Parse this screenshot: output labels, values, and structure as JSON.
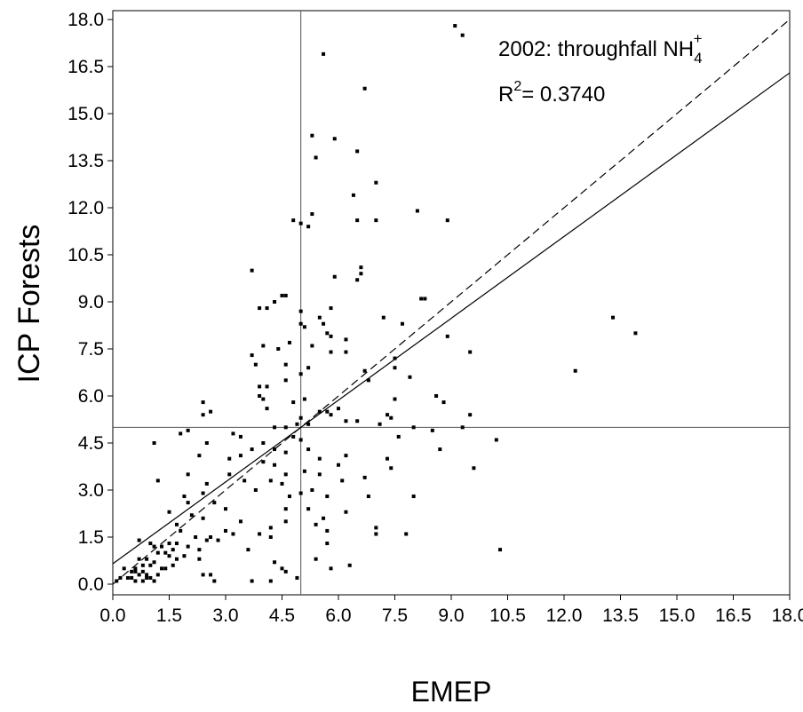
{
  "chart_data": {
    "type": "scatter",
    "title": "",
    "xlabel": "EMEP",
    "ylabel": "ICP  Forests",
    "xlim": [
      0,
      18
    ],
    "ylim": [
      0,
      18
    ],
    "xticks": [
      "0.0",
      "1.5",
      "3.0",
      "4.5",
      "6.0",
      "7.5",
      "9.0",
      "10.5",
      "12.0",
      "13.5",
      "15.0",
      "16.5",
      "18.0"
    ],
    "yticks": [
      "0.0",
      "1.5",
      "3.0",
      "4.5",
      "6.0",
      "7.5",
      "9.0",
      "10.5",
      "12.0",
      "13.5",
      "15.0",
      "16.5",
      "18.0"
    ],
    "reference_lines": {
      "x": 5,
      "y": 5
    },
    "annotation": {
      "year_label": "2002: throughfall NH",
      "ion_sub": "4",
      "ion_sup": "+",
      "r2_prefix": "R",
      "r2_sup": "2",
      "r2_value": "= 0.3740"
    },
    "lines": [
      {
        "style": "dashed",
        "x": [
          0,
          18
        ],
        "y": [
          0,
          18
        ]
      },
      {
        "style": "solid",
        "x": [
          0,
          18
        ],
        "y": [
          0.65,
          16.3
        ]
      }
    ],
    "points": [
      [
        9.1,
        17.8
      ],
      [
        9.3,
        17.5
      ],
      [
        5.6,
        16.9
      ],
      [
        6.7,
        15.8
      ],
      [
        5.3,
        14.3
      ],
      [
        5.9,
        14.2
      ],
      [
        5.4,
        13.6
      ],
      [
        6.5,
        13.8
      ],
      [
        7.0,
        12.8
      ],
      [
        6.4,
        12.4
      ],
      [
        8.1,
        11.9
      ],
      [
        5.3,
        11.8
      ],
      [
        6.5,
        11.6
      ],
      [
        7.0,
        11.6
      ],
      [
        8.9,
        11.6
      ],
      [
        4.8,
        11.6
      ],
      [
        5.0,
        11.5
      ],
      [
        5.2,
        11.4
      ],
      [
        6.6,
        10.1
      ],
      [
        6.6,
        9.9
      ],
      [
        5.9,
        9.8
      ],
      [
        3.7,
        10.0
      ],
      [
        6.5,
        9.7
      ],
      [
        4.5,
        9.2
      ],
      [
        4.6,
        9.2
      ],
      [
        4.3,
        9.0
      ],
      [
        8.2,
        9.1
      ],
      [
        8.3,
        9.1
      ],
      [
        5.0,
        8.7
      ],
      [
        3.9,
        8.8
      ],
      [
        4.1,
        8.8
      ],
      [
        5.8,
        8.8
      ],
      [
        5.5,
        8.5
      ],
      [
        5.0,
        8.3
      ],
      [
        5.1,
        8.2
      ],
      [
        5.6,
        8.3
      ],
      [
        7.2,
        8.5
      ],
      [
        7.7,
        8.3
      ],
      [
        6.2,
        7.8
      ],
      [
        5.7,
        8.0
      ],
      [
        5.8,
        7.9
      ],
      [
        13.3,
        8.5
      ],
      [
        13.9,
        8.0
      ],
      [
        4.0,
        7.6
      ],
      [
        4.7,
        7.7
      ],
      [
        4.4,
        7.5
      ],
      [
        5.3,
        7.6
      ],
      [
        5.8,
        7.4
      ],
      [
        6.2,
        7.4
      ],
      [
        3.7,
        7.3
      ],
      [
        3.8,
        7.0
      ],
      [
        4.6,
        7.0
      ],
      [
        5.2,
        6.9
      ],
      [
        6.7,
        6.8
      ],
      [
        5.0,
        6.7
      ],
      [
        3.9,
        6.3
      ],
      [
        4.1,
        6.3
      ],
      [
        4.6,
        6.5
      ],
      [
        6.8,
        6.5
      ],
      [
        7.5,
        7.2
      ],
      [
        7.5,
        6.9
      ],
      [
        7.9,
        6.6
      ],
      [
        8.9,
        7.9
      ],
      [
        9.5,
        7.4
      ],
      [
        12.3,
        6.8
      ],
      [
        3.9,
        6.0
      ],
      [
        4.0,
        5.9
      ],
      [
        4.8,
        5.8
      ],
      [
        5.1,
        5.9
      ],
      [
        5.5,
        5.5
      ],
      [
        5.7,
        5.5
      ],
      [
        6.0,
        5.6
      ],
      [
        7.3,
        5.4
      ],
      [
        7.5,
        5.9
      ],
      [
        8.6,
        6.0
      ],
      [
        8.8,
        5.8
      ],
      [
        9.5,
        5.4
      ],
      [
        2.4,
        5.8
      ],
      [
        2.4,
        5.4
      ],
      [
        2.6,
        5.5
      ],
      [
        4.1,
        5.6
      ],
      [
        4.3,
        5.0
      ],
      [
        4.6,
        5.0
      ],
      [
        4.9,
        5.1
      ],
      [
        5.0,
        5.3
      ],
      [
        5.2,
        5.1
      ],
      [
        5.8,
        5.4
      ],
      [
        6.2,
        5.2
      ],
      [
        6.5,
        5.2
      ],
      [
        7.1,
        5.1
      ],
      [
        7.4,
        5.3
      ],
      [
        7.6,
        4.7
      ],
      [
        8.0,
        5.0
      ],
      [
        8.5,
        4.9
      ],
      [
        9.3,
        5.0
      ],
      [
        10.2,
        4.6
      ],
      [
        1.8,
        4.8
      ],
      [
        2.0,
        4.9
      ],
      [
        2.5,
        4.5
      ],
      [
        3.2,
        4.8
      ],
      [
        3.4,
        4.7
      ],
      [
        3.7,
        4.3
      ],
      [
        4.0,
        4.5
      ],
      [
        4.3,
        4.3
      ],
      [
        4.6,
        4.2
      ],
      [
        4.8,
        4.7
      ],
      [
        5.0,
        4.6
      ],
      [
        5.2,
        4.3
      ],
      [
        5.5,
        4.0
      ],
      [
        6.0,
        3.8
      ],
      [
        6.2,
        4.1
      ],
      [
        7.3,
        4.0
      ],
      [
        7.4,
        3.7
      ],
      [
        8.7,
        4.3
      ],
      [
        1.1,
        4.5
      ],
      [
        2.3,
        4.1
      ],
      [
        3.1,
        4.0
      ],
      [
        3.4,
        4.1
      ],
      [
        4.0,
        3.9
      ],
      [
        4.3,
        3.8
      ],
      [
        4.6,
        3.5
      ],
      [
        5.1,
        3.6
      ],
      [
        5.5,
        3.5
      ],
      [
        6.1,
        3.3
      ],
      [
        6.7,
        3.4
      ],
      [
        9.6,
        3.7
      ],
      [
        1.2,
        3.3
      ],
      [
        2.0,
        3.5
      ],
      [
        2.5,
        3.2
      ],
      [
        3.1,
        3.5
      ],
      [
        3.5,
        3.3
      ],
      [
        3.8,
        3.0
      ],
      [
        4.2,
        3.3
      ],
      [
        4.5,
        3.2
      ],
      [
        4.7,
        2.8
      ],
      [
        5.0,
        2.9
      ],
      [
        5.3,
        3.0
      ],
      [
        5.7,
        2.8
      ],
      [
        6.8,
        2.8
      ],
      [
        8.0,
        2.8
      ],
      [
        1.9,
        2.8
      ],
      [
        2.0,
        2.6
      ],
      [
        2.4,
        2.9
      ],
      [
        2.7,
        2.6
      ],
      [
        3.0,
        2.4
      ],
      [
        4.6,
        2.4
      ],
      [
        5.2,
        2.4
      ],
      [
        5.6,
        2.1
      ],
      [
        6.2,
        2.3
      ],
      [
        1.5,
        2.3
      ],
      [
        2.1,
        2.2
      ],
      [
        2.4,
        2.1
      ],
      [
        3.4,
        2.0
      ],
      [
        4.2,
        1.8
      ],
      [
        4.6,
        2.0
      ],
      [
        5.4,
        1.9
      ],
      [
        5.7,
        1.7
      ],
      [
        7.0,
        1.8
      ],
      [
        7.0,
        1.6
      ],
      [
        7.8,
        1.6
      ],
      [
        1.8,
        1.7
      ],
      [
        2.2,
        1.5
      ],
      [
        2.6,
        1.5
      ],
      [
        2.8,
        1.4
      ],
      [
        3.2,
        1.6
      ],
      [
        3.9,
        1.6
      ],
      [
        4.2,
        1.5
      ],
      [
        0.7,
        1.4
      ],
      [
        1.0,
        1.3
      ],
      [
        1.1,
        1.2
      ],
      [
        1.3,
        1.2
      ],
      [
        1.5,
        1.3
      ],
      [
        1.6,
        1.1
      ],
      [
        1.7,
        1.3
      ],
      [
        2.0,
        1.2
      ],
      [
        2.3,
        1.1
      ],
      [
        2.5,
        1.4
      ],
      [
        3.6,
        1.1
      ],
      [
        5.7,
        1.3
      ],
      [
        1.2,
        1.0
      ],
      [
        1.4,
        1.0
      ],
      [
        1.5,
        0.9
      ],
      [
        1.7,
        0.8
      ],
      [
        1.9,
        0.9
      ],
      [
        2.3,
        0.8
      ],
      [
        0.7,
        0.8
      ],
      [
        0.8,
        0.6
      ],
      [
        0.9,
        0.8
      ],
      [
        1.0,
        0.6
      ],
      [
        1.1,
        0.7
      ],
      [
        1.3,
        0.5
      ],
      [
        1.6,
        0.6
      ],
      [
        0.3,
        0.5
      ],
      [
        0.5,
        0.4
      ],
      [
        0.6,
        0.5
      ],
      [
        0.8,
        0.4
      ],
      [
        0.9,
        0.3
      ],
      [
        1.0,
        0.2
      ],
      [
        1.2,
        0.3
      ],
      [
        1.4,
        0.5
      ],
      [
        0.4,
        0.2
      ],
      [
        0.5,
        0.2
      ],
      [
        0.6,
        0.1
      ],
      [
        0.7,
        0.3
      ],
      [
        0.8,
        0.1
      ],
      [
        0.9,
        0.2
      ],
      [
        1.1,
        0.1
      ],
      [
        0.2,
        0.2
      ],
      [
        0.1,
        0.1
      ],
      [
        0.6,
        0.4
      ],
      [
        2.4,
        0.3
      ],
      [
        2.6,
        0.3
      ],
      [
        4.3,
        0.7
      ],
      [
        4.6,
        0.4
      ],
      [
        4.9,
        0.2
      ],
      [
        3.7,
        0.1
      ],
      [
        4.2,
        0.1
      ],
      [
        5.4,
        0.8
      ],
      [
        5.8,
        0.5
      ],
      [
        6.3,
        0.6
      ],
      [
        10.3,
        1.1
      ],
      [
        4.5,
        0.5
      ],
      [
        2.7,
        0.1
      ],
      [
        3.0,
        1.7
      ],
      [
        1.7,
        1.9
      ]
    ]
  }
}
